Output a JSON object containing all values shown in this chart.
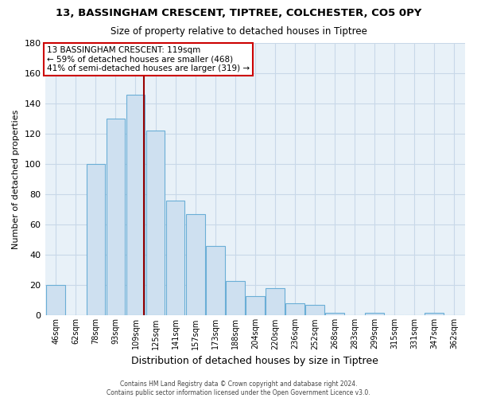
{
  "title": "13, BASSINGHAM CRESCENT, TIPTREE, COLCHESTER, CO5 0PY",
  "subtitle": "Size of property relative to detached houses in Tiptree",
  "xlabel": "Distribution of detached houses by size in Tiptree",
  "ylabel": "Number of detached properties",
  "bar_labels": [
    "46sqm",
    "62sqm",
    "78sqm",
    "93sqm",
    "109sqm",
    "125sqm",
    "141sqm",
    "157sqm",
    "173sqm",
    "188sqm",
    "204sqm",
    "220sqm",
    "236sqm",
    "252sqm",
    "268sqm",
    "283sqm",
    "299sqm",
    "315sqm",
    "331sqm",
    "347sqm",
    "362sqm"
  ],
  "bar_values": [
    20,
    0,
    100,
    130,
    146,
    122,
    76,
    67,
    46,
    23,
    13,
    18,
    8,
    7,
    2,
    0,
    2,
    0,
    0,
    2,
    0
  ],
  "bar_color": "#cee0f0",
  "bar_edge_color": "#6aaed6",
  "marker_label": "13 BASSINGHAM CRESCENT: 119sqm",
  "annotation_line1": "← 59% of detached houses are smaller (468)",
  "annotation_line2": "41% of semi-detached houses are larger (319) →",
  "vline_color": "#990000",
  "vline_x_index": 4.42,
  "ylim": [
    0,
    180
  ],
  "yticks": [
    0,
    20,
    40,
    60,
    80,
    100,
    120,
    140,
    160,
    180
  ],
  "box_color": "#cc0000",
  "footer_line1": "Contains HM Land Registry data © Crown copyright and database right 2024.",
  "footer_line2": "Contains public sector information licensed under the Open Government Licence v3.0.",
  "bg_color": "#e8f1f8",
  "grid_color": "#c8d8e8"
}
